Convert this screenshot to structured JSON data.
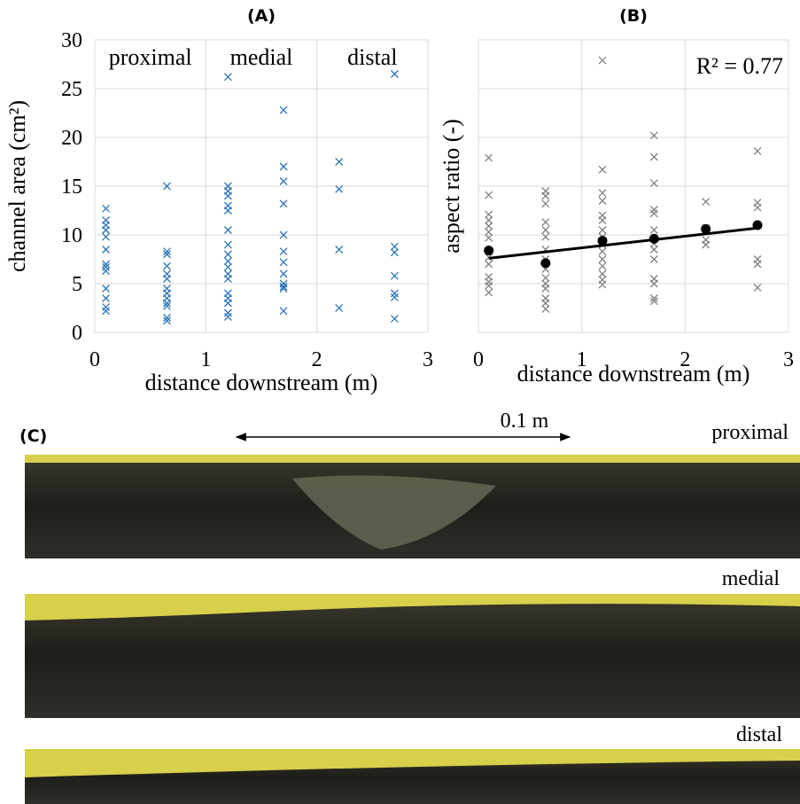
{
  "chart_data": [
    {
      "type": "scatter",
      "title": "(A)",
      "xlabel": "distance downstream (m)",
      "ylabel": "channel area (cm²)",
      "xlim": [
        0,
        3
      ],
      "xticks": [
        0,
        1,
        2,
        3
      ],
      "ylim": [
        0,
        30
      ],
      "yticks": [
        0,
        5,
        10,
        15,
        20,
        25,
        30
      ],
      "show_ytick_labels": true,
      "grid": true,
      "annotations": [
        "proximal",
        "medial",
        "distal"
      ],
      "series": [
        {
          "color": "#2e75b6",
          "marker": "x",
          "x": [
            0.1,
            0.1,
            0.1,
            0.1,
            0.1,
            0.1,
            0.1,
            0.1,
            0.1,
            0.1,
            0.1,
            0.1,
            0.1,
            0.65,
            0.65,
            0.65,
            0.65,
            0.65,
            0.65,
            0.65,
            0.65,
            0.65,
            0.65,
            0.65,
            0.65,
            0.65,
            1.2,
            1.2,
            1.2,
            1.2,
            1.2,
            1.2,
            1.2,
            1.2,
            1.2,
            1.2,
            1.2,
            1.2,
            1.2,
            1.2,
            1.2,
            1.2,
            1.2,
            1.2,
            1.7,
            1.7,
            1.7,
            1.7,
            1.7,
            1.7,
            1.7,
            1.7,
            1.7,
            1.7,
            1.7,
            1.7,
            2.2,
            2.2,
            2.2,
            2.2,
            2.7,
            2.7,
            2.7,
            2.7,
            2.7,
            2.7,
            2.7
          ],
          "values": [
            12.7,
            11.5,
            11,
            10.5,
            9.8,
            8.5,
            7,
            6.7,
            6.3,
            4.5,
            3.5,
            2.6,
            2.2,
            15,
            8.3,
            8,
            6.8,
            6,
            5.5,
            4.5,
            4,
            3.5,
            3,
            2.7,
            1.5,
            1.2,
            26.2,
            15,
            14.5,
            14,
            13,
            12.5,
            10.5,
            9,
            8,
            7.3,
            6.7,
            6,
            5.5,
            4,
            3.5,
            3,
            2,
            1.6,
            22.8,
            17,
            15.5,
            13.2,
            10,
            8.3,
            7.2,
            6,
            5,
            4.7,
            4.5,
            2.2,
            17.5,
            14.7,
            8.5,
            2.5,
            26.5,
            8.8,
            8.2,
            5.8,
            4,
            3.6,
            1.4
          ]
        }
      ]
    },
    {
      "type": "scatter",
      "title": "(B)",
      "xlabel": "distance downstream (m)",
      "ylabel": "aspect ratio (-)",
      "xlim": [
        0,
        3
      ],
      "xticks": [
        0,
        1,
        2,
        3
      ],
      "ylim": [
        0,
        30
      ],
      "yticks": [
        0,
        5,
        10,
        15,
        20,
        25,
        30
      ],
      "show_ytick_labels": false,
      "grid": true,
      "annotations": [
        "R² = 0.77"
      ],
      "series": [
        {
          "color": "#808080",
          "marker": "x",
          "x": [
            0.1,
            0.1,
            0.1,
            0.1,
            0.1,
            0.1,
            0.1,
            0.1,
            0.1,
            0.1,
            0.1,
            0.1,
            0.1,
            0.65,
            0.65,
            0.65,
            0.65,
            0.65,
            0.65,
            0.65,
            0.65,
            0.65,
            0.65,
            0.65,
            0.65,
            0.65,
            0.65,
            0.65,
            1.2,
            1.2,
            1.2,
            1.2,
            1.2,
            1.2,
            1.2,
            1.2,
            1.2,
            1.2,
            1.2,
            1.2,
            1.2,
            1.2,
            1.2,
            1.7,
            1.7,
            1.7,
            1.7,
            1.7,
            1.7,
            1.7,
            1.7,
            1.7,
            1.7,
            1.7,
            1.7,
            1.7,
            2.2,
            2.2,
            2.2,
            2.2,
            2.7,
            2.7,
            2.7,
            2.7,
            2.7,
            2.7,
            2.7
          ],
          "values": [
            17.9,
            14.1,
            12.1,
            11.5,
            10.9,
            10.3,
            9.7,
            7.7,
            7,
            5.7,
            5.2,
            4.8,
            4.1,
            14.5,
            14,
            13.2,
            11.3,
            10.5,
            9.8,
            8.5,
            7.5,
            6.5,
            5.6,
            5,
            4.5,
            3.5,
            3,
            2.4,
            27.9,
            16.7,
            14.3,
            13.5,
            12,
            11.5,
            10.5,
            9.8,
            9,
            8.3,
            7.5,
            6.8,
            6,
            5.4,
            4.9,
            20.2,
            18,
            15.3,
            12.6,
            12.2,
            10.5,
            9.1,
            8.5,
            7.5,
            5.5,
            5,
            3.5,
            3.2,
            13.4,
            10.7,
            9.5,
            9,
            18.6,
            13.3,
            12.8,
            11,
            7.5,
            7,
            4.6
          ]
        },
        {
          "color": "#000000",
          "marker": "o",
          "x": [
            0.1,
            0.65,
            1.2,
            1.7,
            2.2,
            2.7
          ],
          "values": [
            8.4,
            7.1,
            9.4,
            9.6,
            10.6,
            11
          ]
        }
      ],
      "trendline": {
        "color": "#000000",
        "x": [
          0.1,
          2.7
        ],
        "values": [
          7.6,
          10.7
        ]
      }
    }
  ],
  "panel_c": {
    "label": "(C)",
    "scale": "0.1 m",
    "sections": [
      "proximal",
      "medial",
      "distal"
    ]
  }
}
